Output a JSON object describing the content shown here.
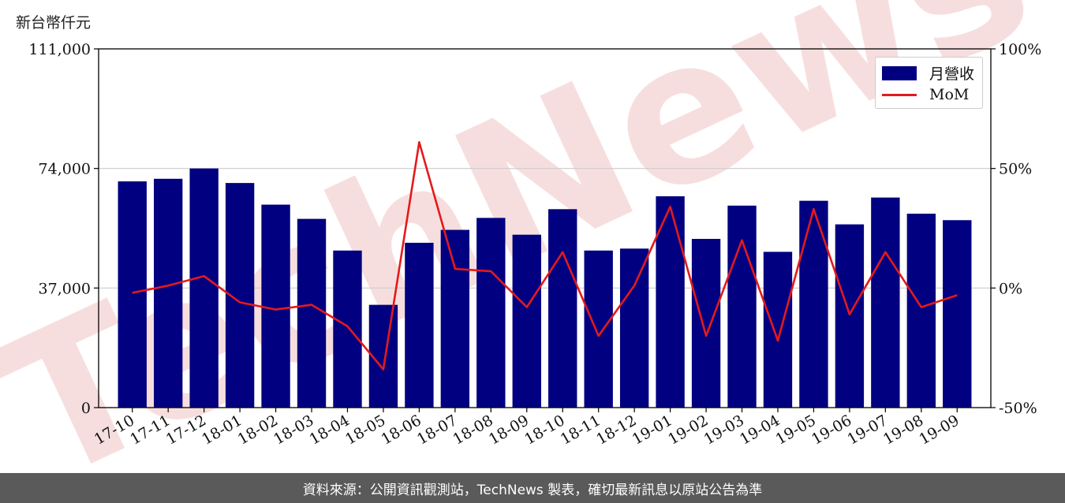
{
  "unit_label": "新台幣仟元",
  "footer_text": "資料來源：公開資訊觀測站，TechNews 製表，確切最新訊息以原站公告為準",
  "watermark": "TechNews",
  "colors": {
    "bar": "#000080",
    "line": "#e31a1c",
    "grid": "#cccccc",
    "footer_bg": "#5a5a5a",
    "watermark": "#f2c4c4"
  },
  "chart_data": {
    "type": "bar",
    "categories": [
      "17-10",
      "17-11",
      "17-12",
      "18-01",
      "18-02",
      "18-03",
      "18-04",
      "18-05",
      "18-06",
      "18-07",
      "18-08",
      "18-09",
      "18-10",
      "18-11",
      "18-12",
      "19-01",
      "19-02",
      "19-03",
      "19-04",
      "19-05",
      "19-06",
      "19-07",
      "19-08",
      "19-09"
    ],
    "series": [
      {
        "name": "月營收",
        "type": "bar",
        "axis": "left",
        "values": [
          70000,
          70800,
          74000,
          69500,
          62800,
          58400,
          48600,
          31800,
          51000,
          55000,
          58700,
          53500,
          61400,
          48600,
          49200,
          65400,
          52200,
          62500,
          48200,
          64000,
          56700,
          65000,
          60000,
          58000
        ]
      },
      {
        "name": "MoM",
        "type": "line",
        "axis": "right",
        "values": [
          -2,
          1,
          5,
          -6,
          -9,
          -7,
          -16,
          -34,
          61,
          8,
          7,
          -8,
          15,
          -20,
          1,
          34,
          -20,
          20,
          -22,
          33,
          -11,
          15,
          -8,
          -3
        ]
      }
    ],
    "y_left": {
      "ticks": [
        "0",
        "37,000",
        "74,000",
        "111,000"
      ],
      "range": [
        0,
        111000
      ]
    },
    "y_right": {
      "ticks": [
        "-50%",
        "0%",
        "50%",
        "100%"
      ],
      "range": [
        -50,
        100
      ]
    },
    "grid": "horizontal",
    "legend_position": "top-right"
  }
}
